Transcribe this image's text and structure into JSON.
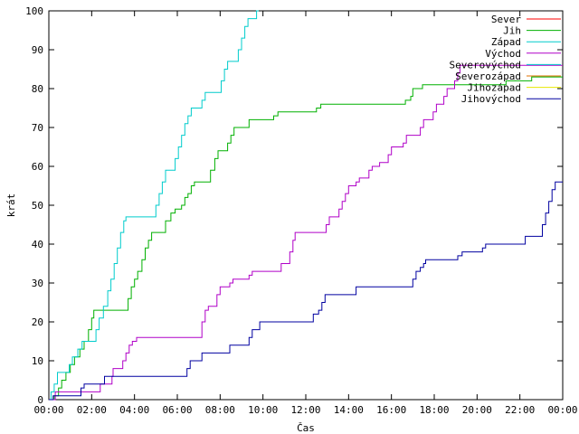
{
  "chart_data": {
    "type": "line",
    "xlabel": "Čas",
    "ylabel": "krát",
    "x_ticks": [
      "00:00",
      "02:00",
      "04:00",
      "06:00",
      "08:00",
      "10:00",
      "12:00",
      "14:00",
      "16:00",
      "18:00",
      "20:00",
      "22:00",
      "00:00"
    ],
    "xlim": [
      0,
      24
    ],
    "ylim": [
      0,
      100
    ],
    "y_ticks": [
      0,
      10,
      20,
      30,
      40,
      50,
      60,
      70,
      80,
      90,
      100
    ],
    "legend_position": "top-right",
    "step": true,
    "series": [
      {
        "name": "Sever",
        "color": "#ff0000",
        "points": []
      },
      {
        "name": "Jih",
        "color": "#00b000",
        "points": [
          [
            0,
            0
          ],
          [
            0.25,
            1
          ],
          [
            0.45,
            3
          ],
          [
            0.6,
            5
          ],
          [
            0.8,
            7
          ],
          [
            1,
            9
          ],
          [
            1.2,
            11
          ],
          [
            1.45,
            13
          ],
          [
            1.65,
            15
          ],
          [
            1.85,
            18
          ],
          [
            2,
            21
          ],
          [
            2.1,
            23
          ],
          [
            3.6,
            23
          ],
          [
            3.7,
            26
          ],
          [
            3.85,
            29
          ],
          [
            4,
            31
          ],
          [
            4.15,
            33
          ],
          [
            4.35,
            36
          ],
          [
            4.5,
            39
          ],
          [
            4.65,
            41
          ],
          [
            4.8,
            43
          ],
          [
            5.3,
            43
          ],
          [
            5.45,
            46
          ],
          [
            5.7,
            48
          ],
          [
            5.9,
            49
          ],
          [
            6.2,
            50
          ],
          [
            6.35,
            52
          ],
          [
            6.5,
            53
          ],
          [
            6.65,
            55
          ],
          [
            6.8,
            56
          ],
          [
            7.4,
            56
          ],
          [
            7.55,
            59
          ],
          [
            7.75,
            62
          ],
          [
            7.9,
            64
          ],
          [
            8.2,
            64
          ],
          [
            8.35,
            66
          ],
          [
            8.5,
            68
          ],
          [
            8.65,
            70
          ],
          [
            9.2,
            70
          ],
          [
            9.35,
            72
          ],
          [
            10.3,
            72
          ],
          [
            10.5,
            73
          ],
          [
            10.7,
            74
          ],
          [
            12.4,
            74
          ],
          [
            12.5,
            75
          ],
          [
            12.7,
            76
          ],
          [
            16.5,
            76
          ],
          [
            16.65,
            77
          ],
          [
            16.9,
            78
          ],
          [
            17,
            80
          ],
          [
            17.3,
            80
          ],
          [
            17.45,
            81
          ],
          [
            21.2,
            81
          ],
          [
            21.35,
            82
          ],
          [
            22.4,
            82
          ],
          [
            22.55,
            83
          ],
          [
            24,
            83
          ]
        ]
      },
      {
        "name": "Západ",
        "color": "#00cccc",
        "points": [
          [
            0,
            0
          ],
          [
            0.1,
            2
          ],
          [
            0.25,
            4
          ],
          [
            0.4,
            7
          ],
          [
            0.75,
            7
          ],
          [
            0.95,
            9
          ],
          [
            1.1,
            11
          ],
          [
            1.35,
            13
          ],
          [
            1.55,
            15
          ],
          [
            2,
            15
          ],
          [
            2.2,
            18
          ],
          [
            2.35,
            21
          ],
          [
            2.55,
            24
          ],
          [
            2.75,
            28
          ],
          [
            2.9,
            31
          ],
          [
            3.05,
            35
          ],
          [
            3.2,
            39
          ],
          [
            3.35,
            43
          ],
          [
            3.5,
            46
          ],
          [
            3.6,
            47
          ],
          [
            4.8,
            47
          ],
          [
            5,
            50
          ],
          [
            5.15,
            53
          ],
          [
            5.3,
            56
          ],
          [
            5.45,
            59
          ],
          [
            5.75,
            59
          ],
          [
            5.9,
            62
          ],
          [
            6.05,
            65
          ],
          [
            6.2,
            68
          ],
          [
            6.35,
            71
          ],
          [
            6.5,
            73
          ],
          [
            6.65,
            75
          ],
          [
            7,
            75
          ],
          [
            7.15,
            77
          ],
          [
            7.3,
            79
          ],
          [
            7.9,
            79
          ],
          [
            8.05,
            82
          ],
          [
            8.2,
            85
          ],
          [
            8.35,
            87
          ],
          [
            8.7,
            87
          ],
          [
            8.85,
            90
          ],
          [
            9,
            93
          ],
          [
            9.15,
            96
          ],
          [
            9.3,
            98
          ],
          [
            9.6,
            98
          ],
          [
            9.7,
            100
          ],
          [
            9.8,
            100
          ]
        ]
      },
      {
        "name": "Východ",
        "color": "#b000c8",
        "points": [
          [
            0,
            0
          ],
          [
            0.3,
            2
          ],
          [
            2.2,
            2
          ],
          [
            2.4,
            4
          ],
          [
            2.8,
            4
          ],
          [
            2.95,
            6
          ],
          [
            3,
            8
          ],
          [
            3.3,
            8
          ],
          [
            3.45,
            10
          ],
          [
            3.6,
            12
          ],
          [
            3.75,
            14
          ],
          [
            3.9,
            15
          ],
          [
            4.1,
            16
          ],
          [
            7,
            16
          ],
          [
            7.15,
            20
          ],
          [
            7.3,
            23
          ],
          [
            7.45,
            24
          ],
          [
            7.7,
            24
          ],
          [
            7.85,
            27
          ],
          [
            8,
            29
          ],
          [
            8.3,
            29
          ],
          [
            8.45,
            30
          ],
          [
            8.6,
            31
          ],
          [
            9.2,
            31
          ],
          [
            9.35,
            32
          ],
          [
            9.5,
            33
          ],
          [
            10.7,
            33
          ],
          [
            10.85,
            35
          ],
          [
            11.1,
            35
          ],
          [
            11.25,
            38
          ],
          [
            11.4,
            41
          ],
          [
            11.5,
            43
          ],
          [
            12.8,
            43
          ],
          [
            12.95,
            45
          ],
          [
            13.1,
            47
          ],
          [
            13.4,
            47
          ],
          [
            13.55,
            49
          ],
          [
            13.7,
            51
          ],
          [
            13.85,
            53
          ],
          [
            14,
            55
          ],
          [
            14.2,
            55
          ],
          [
            14.35,
            56
          ],
          [
            14.5,
            57
          ],
          [
            14.8,
            57
          ],
          [
            14.95,
            59
          ],
          [
            15.1,
            60
          ],
          [
            15.3,
            60
          ],
          [
            15.45,
            61
          ],
          [
            15.7,
            61
          ],
          [
            15.85,
            63
          ],
          [
            16,
            65
          ],
          [
            16.4,
            65
          ],
          [
            16.55,
            66
          ],
          [
            16.7,
            68
          ],
          [
            17.2,
            68
          ],
          [
            17.35,
            70
          ],
          [
            17.5,
            72
          ],
          [
            17.8,
            72
          ],
          [
            17.95,
            74
          ],
          [
            18.1,
            76
          ],
          [
            18.3,
            76
          ],
          [
            18.45,
            78
          ],
          [
            18.6,
            80
          ],
          [
            18.8,
            80
          ],
          [
            18.95,
            82
          ],
          [
            19.1,
            84
          ],
          [
            19.2,
            86
          ],
          [
            24,
            86
          ]
        ]
      },
      {
        "name": "Severovýchod",
        "color": "#00cccc",
        "points": []
      },
      {
        "name": "Severozápad",
        "color": "#e07000",
        "points": []
      },
      {
        "name": "Jihozápad",
        "color": "#e8e800",
        "points": []
      },
      {
        "name": "Jihovýchod",
        "color": "#0000a0",
        "points": [
          [
            0,
            0
          ],
          [
            0.2,
            1
          ],
          [
            1.4,
            1
          ],
          [
            1.5,
            3
          ],
          [
            1.65,
            4
          ],
          [
            2.5,
            4
          ],
          [
            2.6,
            6
          ],
          [
            6.3,
            6
          ],
          [
            6.45,
            8
          ],
          [
            6.6,
            10
          ],
          [
            7,
            10
          ],
          [
            7.15,
            12
          ],
          [
            8.3,
            12
          ],
          [
            8.45,
            14
          ],
          [
            9.2,
            14
          ],
          [
            9.35,
            16
          ],
          [
            9.5,
            18
          ],
          [
            9.7,
            18
          ],
          [
            9.85,
            20
          ],
          [
            12.2,
            20
          ],
          [
            12.35,
            22
          ],
          [
            12.6,
            23
          ],
          [
            12.75,
            25
          ],
          [
            12.9,
            27
          ],
          [
            14.2,
            27
          ],
          [
            14.35,
            29
          ],
          [
            16.9,
            29
          ],
          [
            17,
            31
          ],
          [
            17.15,
            33
          ],
          [
            17.35,
            34
          ],
          [
            17.5,
            35
          ],
          [
            17.6,
            36
          ],
          [
            19,
            36
          ],
          [
            19.1,
            37
          ],
          [
            19.3,
            38
          ],
          [
            20.1,
            38
          ],
          [
            20.25,
            39
          ],
          [
            20.4,
            40
          ],
          [
            22.1,
            40
          ],
          [
            22.25,
            42
          ],
          [
            22.9,
            42
          ],
          [
            23.05,
            45
          ],
          [
            23.2,
            48
          ],
          [
            23.35,
            51
          ],
          [
            23.5,
            54
          ],
          [
            23.65,
            56
          ],
          [
            24,
            56
          ]
        ]
      }
    ]
  }
}
